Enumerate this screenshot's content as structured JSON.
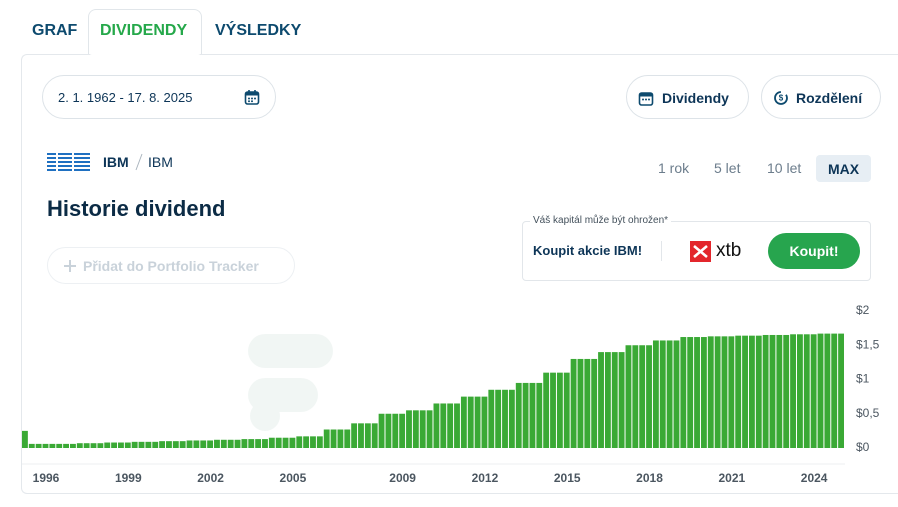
{
  "tabs": [
    "GRAF",
    "DIVIDENDY",
    "VÝSLEDKY"
  ],
  "filters": {
    "date_range": "2. 1. 1962 - 17. 8. 2025",
    "buttons": [
      "Dividendy",
      "Rozdělení"
    ]
  },
  "ticker": {
    "symbol": "IBM",
    "name": "IBM"
  },
  "periods": [
    "1 rok",
    "5 let",
    "10 let",
    "MAX"
  ],
  "title": "Historie dividend",
  "add_button": "Přidat do Portfolio Tracker",
  "ad": {
    "disclaimer": "Váš kapitál může být ohrožen*",
    "text": "Koupit akcie IBM!",
    "brand": "xtb",
    "button": "Koupit!"
  },
  "chart_data": {
    "type": "bar",
    "color": "#3aa935",
    "grid": false,
    "categories": [
      null,
      null,
      null,
      "1996",
      null,
      null,
      null,
      null,
      null,
      null,
      null,
      null,
      null,
      null,
      null,
      "1999",
      null,
      null,
      null,
      null,
      null,
      null,
      null,
      null,
      null,
      null,
      null,
      "2002",
      null,
      null,
      null,
      null,
      null,
      null,
      null,
      null,
      null,
      null,
      null,
      "2005",
      null,
      null,
      null,
      null,
      null,
      null,
      null,
      null,
      null,
      null,
      null,
      null,
      null,
      null,
      null,
      "2009",
      null,
      null,
      null,
      null,
      null,
      null,
      null,
      null,
      null,
      null,
      null,
      "2012",
      null,
      null,
      null,
      null,
      null,
      null,
      null,
      null,
      null,
      null,
      null,
      "2015",
      null,
      null,
      null,
      null,
      null,
      null,
      null,
      null,
      null,
      null,
      null,
      "2018",
      null,
      null,
      null,
      null,
      null,
      null,
      null,
      null,
      null,
      null,
      null,
      "2021",
      null,
      null,
      null,
      null,
      null,
      null,
      null,
      null,
      null,
      null,
      null,
      "2024",
      null,
      null,
      null,
      null
    ],
    "values": [
      0.25,
      0.06,
      0.06,
      0.06,
      0.06,
      0.06,
      0.06,
      0.06,
      0.07,
      0.07,
      0.07,
      0.07,
      0.08,
      0.08,
      0.08,
      0.08,
      0.09,
      0.09,
      0.09,
      0.09,
      0.1,
      0.1,
      0.1,
      0.1,
      0.11,
      0.11,
      0.11,
      0.11,
      0.12,
      0.12,
      0.12,
      0.12,
      0.13,
      0.13,
      0.13,
      0.13,
      0.15,
      0.15,
      0.15,
      0.15,
      0.17,
      0.17,
      0.17,
      0.17,
      0.27,
      0.27,
      0.27,
      0.27,
      0.36,
      0.36,
      0.36,
      0.36,
      0.5,
      0.5,
      0.5,
      0.5,
      0.55,
      0.55,
      0.55,
      0.55,
      0.65,
      0.65,
      0.65,
      0.65,
      0.75,
      0.75,
      0.75,
      0.75,
      0.85,
      0.85,
      0.85,
      0.85,
      0.95,
      0.95,
      0.95,
      0.95,
      1.1,
      1.1,
      1.1,
      1.1,
      1.3,
      1.3,
      1.3,
      1.3,
      1.4,
      1.4,
      1.4,
      1.4,
      1.5,
      1.5,
      1.5,
      1.5,
      1.57,
      1.57,
      1.57,
      1.57,
      1.62,
      1.62,
      1.62,
      1.62,
      1.63,
      1.63,
      1.63,
      1.63,
      1.64,
      1.64,
      1.64,
      1.64,
      1.65,
      1.65,
      1.65,
      1.65,
      1.66,
      1.66,
      1.66,
      1.66,
      1.67,
      1.67,
      1.67,
      1.67
    ],
    "ylim": [
      0,
      2
    ],
    "yticks": [
      {
        "value": 0,
        "label": "$0"
      },
      {
        "value": 0.5,
        "label": "$0,5"
      },
      {
        "value": 1,
        "label": "$1"
      },
      {
        "value": 1.5,
        "label": "$1,5"
      },
      {
        "value": 2,
        "label": "$2"
      }
    ]
  }
}
